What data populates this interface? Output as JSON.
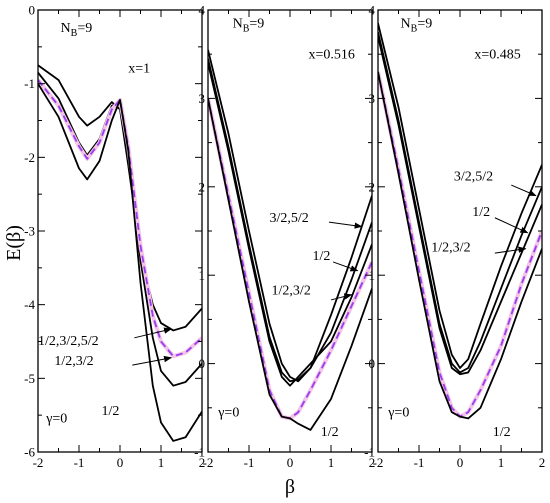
{
  "figure": {
    "ylabel": "E(β)",
    "xlabel": "β"
  },
  "chart_data": [
    {
      "type": "line",
      "panel": "left",
      "xlim": [
        -2,
        2
      ],
      "ylim": [
        -6,
        0
      ],
      "xticks": [
        -2,
        -1,
        0,
        1,
        2
      ],
      "yticks": [
        -6,
        -5,
        -4,
        -3,
        -2,
        -1,
        0
      ],
      "labels": {
        "nb": "N",
        "nb_sub": "B",
        "nb_eq": "=9",
        "x_param": "x=1",
        "gamma": "γ=0",
        "j1": "1/2,3/2,5/2",
        "j2": "1/2,3/2",
        "j3": "1/2"
      },
      "series": [
        {
          "style": "solid",
          "x": [
            -2,
            -1.5,
            -1,
            -0.8,
            -0.5,
            -0.2,
            0,
            0.2,
            0.5,
            0.8,
            1,
            1.3,
            1.6,
            2
          ],
          "y": [
            -0.75,
            -0.95,
            -1.45,
            -1.57,
            -1.45,
            -1.25,
            -1.35,
            -2.1,
            -3.3,
            -4.0,
            -4.25,
            -4.35,
            -4.3,
            -4.05
          ]
        },
        {
          "style": "solid",
          "x": [
            -2,
            -1.5,
            -1,
            -0.8,
            -0.5,
            -0.2,
            0,
            0.2,
            0.5,
            0.8,
            1,
            1.3,
            1.6,
            2
          ],
          "y": [
            -0.85,
            -1.2,
            -1.8,
            -1.97,
            -1.75,
            -1.3,
            -1.25,
            -1.95,
            -3.4,
            -4.45,
            -4.9,
            -5.1,
            -5.05,
            -4.8
          ]
        },
        {
          "style": "dashed",
          "x": [
            -2,
            -1.5,
            -1,
            -0.8,
            -0.5,
            -0.2,
            0,
            0.2,
            0.5,
            0.8,
            1,
            1.3,
            1.6,
            2
          ],
          "y": [
            -0.95,
            -1.3,
            -1.85,
            -2.02,
            -1.8,
            -1.35,
            -1.22,
            -1.85,
            -3.2,
            -4.15,
            -4.5,
            -4.7,
            -4.65,
            -4.45
          ]
        },
        {
          "style": "solid",
          "x": [
            -2,
            -1.5,
            -1,
            -0.8,
            -0.5,
            -0.2,
            0,
            0.2,
            0.5,
            0.8,
            1,
            1.3,
            1.6,
            2
          ],
          "y": [
            -1.0,
            -1.45,
            -2.15,
            -2.3,
            -2.05,
            -1.5,
            -1.22,
            -1.9,
            -3.7,
            -5.1,
            -5.6,
            -5.85,
            -5.8,
            -5.45
          ]
        }
      ]
    },
    {
      "type": "line",
      "panel": "middle",
      "xlim": [
        -2,
        2
      ],
      "ylim": [
        -1,
        4
      ],
      "xticks": [
        -2,
        -1,
        0,
        1,
        2
      ],
      "yticks": [
        -1,
        0,
        1,
        2,
        3,
        4
      ],
      "labels": {
        "nb": "N",
        "nb_sub": "B",
        "nb_eq": "=9",
        "x_param": "x=0.516",
        "gamma": "γ=0",
        "j1": "3/2,5/2",
        "j2": "1/2",
        "j3": "1/2,3/2",
        "j4": "1/2"
      },
      "series": [
        {
          "style": "solid",
          "x": [
            -2,
            -1.5,
            -1,
            -0.5,
            -0.2,
            0,
            0.2,
            0.5,
            1,
            1.5,
            2
          ],
          "y": [
            3.55,
            2.6,
            1.5,
            0.45,
            0.0,
            -0.15,
            -0.2,
            -0.05,
            0.55,
            1.2,
            1.9
          ]
        },
        {
          "style": "solid",
          "x": [
            -2,
            -1.5,
            -1,
            -0.5,
            -0.2,
            0,
            0.2,
            0.5,
            1,
            1.5,
            2
          ],
          "y": [
            3.45,
            2.45,
            1.35,
            0.3,
            -0.1,
            -0.2,
            -0.18,
            -0.05,
            0.35,
            0.95,
            1.6
          ]
        },
        {
          "style": "solid",
          "x": [
            -2,
            -1.5,
            -1,
            -0.5,
            -0.2,
            0,
            0.2,
            0.5,
            1,
            1.5,
            2
          ],
          "y": [
            3.4,
            2.4,
            1.3,
            0.25,
            -0.15,
            -0.25,
            -0.15,
            0.0,
            0.25,
            0.75,
            1.35
          ]
        },
        {
          "style": "dashed",
          "x": [
            -2,
            -1.5,
            -1,
            -0.5,
            -0.2,
            0,
            0.2,
            0.5,
            1,
            1.5,
            2
          ],
          "y": [
            3.0,
            1.9,
            0.8,
            -0.3,
            -0.6,
            -0.62,
            -0.55,
            -0.3,
            0.15,
            0.65,
            1.15
          ]
        },
        {
          "style": "solid",
          "x": [
            -2,
            -1.5,
            -1,
            -0.5,
            -0.2,
            0,
            0.2,
            0.5,
            1,
            1.5,
            2
          ],
          "y": [
            3.0,
            1.85,
            0.7,
            -0.35,
            -0.6,
            -0.62,
            -0.68,
            -0.75,
            -0.4,
            0.2,
            0.85
          ]
        }
      ]
    },
    {
      "type": "line",
      "panel": "right",
      "xlim": [
        -2,
        2
      ],
      "ylim": [
        -1,
        4
      ],
      "xticks": [
        -2,
        -1,
        0,
        1,
        2
      ],
      "yticks": [
        -1,
        0,
        1,
        2,
        3,
        4
      ],
      "labels": {
        "nb": "N",
        "nb_sub": "B",
        "nb_eq": "=9",
        "x_param": "x=0.485",
        "gamma": "γ=0",
        "j1": "3/2,5/2",
        "j2": "1/2",
        "j3": "1/2,3/2",
        "j4": "1/2"
      },
      "series": [
        {
          "style": "solid",
          "x": [
            -2,
            -1.5,
            -1,
            -0.5,
            -0.2,
            0,
            0.2,
            0.5,
            1,
            1.5,
            2
          ],
          "y": [
            3.85,
            2.9,
            1.75,
            0.6,
            0.1,
            -0.05,
            0.05,
            0.45,
            1.1,
            1.7,
            2.25
          ]
        },
        {
          "style": "solid",
          "x": [
            -2,
            -1.5,
            -1,
            -0.5,
            -0.2,
            0,
            0.2,
            0.5,
            1,
            1.5,
            2
          ],
          "y": [
            3.75,
            2.75,
            1.6,
            0.45,
            0.0,
            -0.1,
            -0.05,
            0.25,
            0.85,
            1.45,
            2.0
          ]
        },
        {
          "style": "solid",
          "x": [
            -2,
            -1.5,
            -1,
            -0.5,
            -0.2,
            0,
            0.2,
            0.5,
            1,
            1.5,
            2
          ],
          "y": [
            3.7,
            2.7,
            1.55,
            0.4,
            -0.05,
            -0.12,
            -0.1,
            0.15,
            0.7,
            1.25,
            1.8
          ]
        },
        {
          "style": "dashed",
          "x": [
            -2,
            -1.5,
            -1,
            -0.5,
            -0.2,
            0,
            0.2,
            0.5,
            1,
            1.5,
            2
          ],
          "y": [
            3.3,
            2.2,
            1.05,
            -0.1,
            -0.5,
            -0.6,
            -0.55,
            -0.3,
            0.2,
            0.9,
            1.5
          ]
        },
        {
          "style": "solid",
          "x": [
            -2,
            -1.5,
            -1,
            -0.5,
            -0.2,
            0,
            0.2,
            0.5,
            1,
            1.5,
            2
          ],
          "y": [
            3.3,
            2.15,
            0.95,
            -0.2,
            -0.55,
            -0.6,
            -0.62,
            -0.5,
            0.05,
            0.7,
            1.3
          ]
        }
      ]
    }
  ],
  "colors": {
    "solid": "#000000",
    "dashed": "#9a3cf0",
    "dashed_shadow": "#f3c4e8",
    "axes": "#000000"
  }
}
